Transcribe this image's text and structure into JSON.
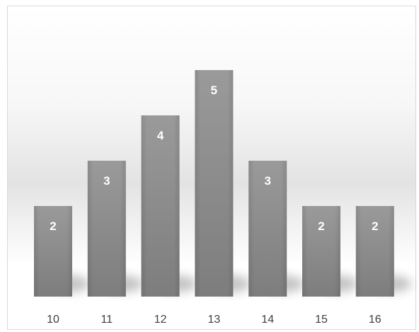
{
  "chart_data": {
    "type": "bar",
    "categories": [
      "10",
      "11",
      "12",
      "13",
      "14",
      "15",
      "16"
    ],
    "values": [
      2,
      3,
      4,
      5,
      3,
      2,
      2
    ],
    "data_labels": [
      "2",
      "3",
      "4",
      "5",
      "3",
      "2",
      "2"
    ],
    "ylim": [
      0,
      5
    ],
    "grid": false,
    "legend": "none",
    "colors": {
      "bar_top": "#9a9a9a",
      "bar_bottom": "#7d7d7d",
      "label": "#ffffff",
      "tick": "#404040"
    }
  }
}
